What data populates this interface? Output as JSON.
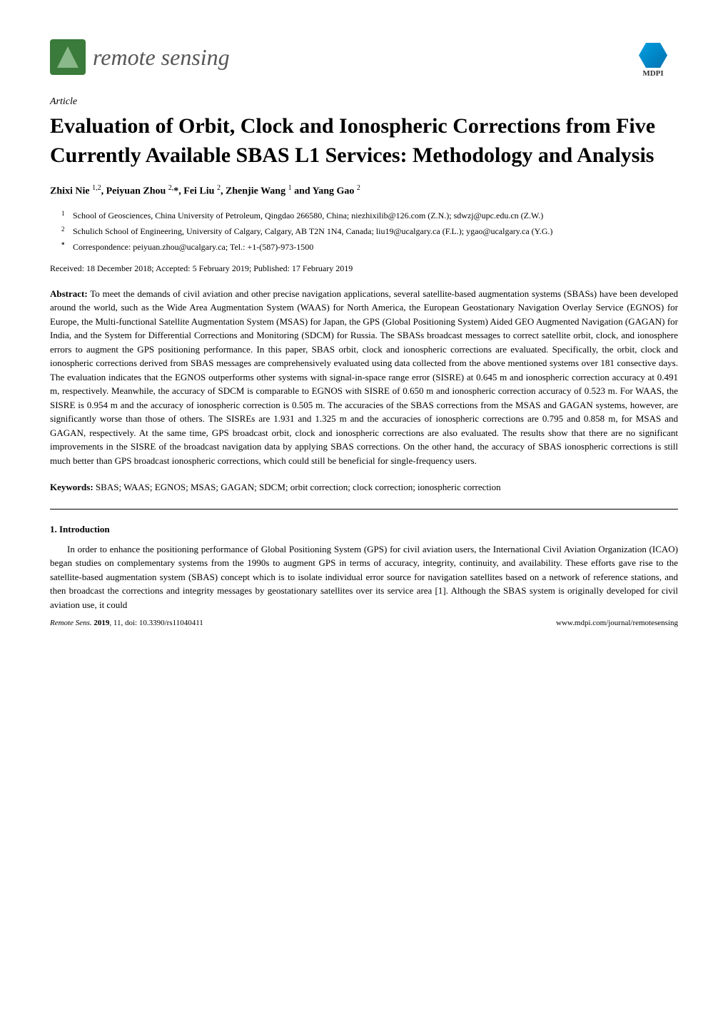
{
  "header": {
    "journal_name": "remote sensing",
    "publisher": "MDPI"
  },
  "article": {
    "type": "Article",
    "title": "Evaluation of Orbit, Clock and Ionospheric Corrections from Five Currently Available SBAS L1 Services: Methodology and Analysis",
    "authors_line": "Zhixi Nie 1,2, Peiyuan Zhou 2,*, Fei Liu 2, Zhenjie Wang 1 and Yang Gao 2",
    "affiliations": [
      {
        "num": "1",
        "text": "School of Geosciences, China University of Petroleum, Qingdao 266580, China; niezhixilib@126.com (Z.N.); sdwzj@upc.edu.cn (Z.W.)"
      },
      {
        "num": "2",
        "text": "Schulich School of Engineering, University of Calgary, Calgary, AB T2N 1N4, Canada; liu19@ucalgary.ca (F.L.); ygao@ucalgary.ca (Y.G.)"
      },
      {
        "num": "*",
        "text": "Correspondence: peiyuan.zhou@ucalgary.ca; Tel.: +1-(587)-973-1500"
      }
    ],
    "dates": "Received: 18 December 2018; Accepted: 5 February 2019; Published: 17 February 2019",
    "abstract_label": "Abstract:",
    "abstract": " To meet the demands of civil aviation and other precise navigation applications, several satellite-based augmentation systems (SBASs) have been developed around the world, such as the Wide Area Augmentation System (WAAS) for North America, the European Geostationary Navigation Overlay Service (EGNOS) for Europe, the Multi-functional Satellite Augmentation System (MSAS) for Japan, the GPS (Global Positioning System) Aided GEO Augmented Navigation (GAGAN) for India, and the System for Differential Corrections and Monitoring (SDCM) for Russia. The SBASs broadcast messages to correct satellite orbit, clock, and ionosphere errors to augment the GPS positioning performance. In this paper, SBAS orbit, clock and ionospheric corrections are evaluated. Specifically, the orbit, clock and ionospheric corrections derived from SBAS messages are comprehensively evaluated using data collected from the above mentioned systems over 181 consective days. The evaluation indicates that the EGNOS outperforms other systems with signal-in-space range error (SISRE) at 0.645 m and ionospheric correction accuracy at 0.491 m, respectively. Meanwhile, the accuracy of SDCM is comparable to EGNOS with SISRE of 0.650 m and ionospheric correction accuracy of 0.523 m. For WAAS, the SISRE is 0.954 m and the accuracy of ionospheric correction is 0.505 m. The accuracies of the SBAS corrections from the MSAS and GAGAN systems, however, are significantly worse than those of others. The SISREs are 1.931 and 1.325 m and the accuracies of ionospheric corrections are 0.795 and 0.858 m, for MSAS and GAGAN, respectively. At the same time, GPS broadcast orbit, clock and ionospheric corrections are also evaluated. The results show that there are no significant improvements in the SISRE of the broadcast navigation data by applying SBAS corrections. On the other hand, the accuracy of SBAS ionospheric corrections is still much better than GPS broadcast ionospheric corrections, which could still be beneficial for single-frequency users.",
    "keywords_label": "Keywords:",
    "keywords": " SBAS; WAAS; EGNOS; MSAS; GAGAN; SDCM; orbit correction; clock correction; ionospheric correction",
    "section1_heading": "1. Introduction",
    "intro_text": "In order to enhance the positioning performance of Global Positioning System (GPS) for civil aviation users, the International Civil Aviation Organization (ICAO) began studies on complementary systems from the 1990s to augment GPS in terms of accuracy, integrity, continuity, and availability. These efforts gave rise to the satellite-based augmentation system (SBAS) concept which is to isolate individual error source for navigation satellites based on a network of reference stations, and then broadcast the corrections and integrity messages by geostationary satellites over its service area [1]. Although the SBAS system is originally developed for civil aviation use, it could"
  },
  "footer": {
    "left_journal": "Remote Sens.",
    "left_year": "2019",
    "left_rest": ", 11, doi: 10.3390/rs11040411",
    "right": "www.mdpi.com/journal/remotesensing"
  }
}
